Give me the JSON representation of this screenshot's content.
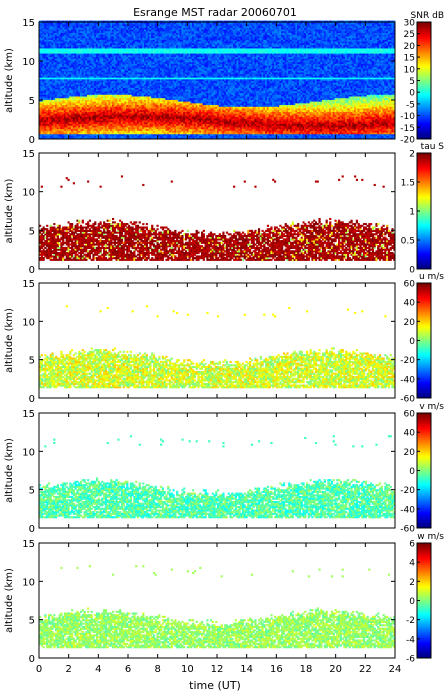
{
  "chart_data": {
    "type": "heatmap",
    "title": "Esrange MST radar 20060701",
    "xlabel": "time (UT)",
    "xlim": [
      0,
      24
    ],
    "xticks": [
      0,
      2,
      4,
      6,
      8,
      10,
      12,
      14,
      16,
      18,
      20,
      22,
      24
    ],
    "panels": [
      {
        "id": "snr",
        "ylabel": "altitude (km)",
        "ylim": [
          0,
          15
        ],
        "yticks": [
          0,
          5,
          10,
          15
        ],
        "colorbar_label": "SNR dB",
        "colorbar_range": [
          -20,
          30
        ],
        "colorbar_ticks": [
          -20,
          -15,
          -10,
          -5,
          0,
          5,
          10,
          15,
          20,
          25,
          30
        ],
        "features": [
          {
            "name": "noise floor band",
            "altitude_km": [
              0.5,
              15
            ],
            "level": -10
          },
          {
            "name": "interference line",
            "altitude_km": 11.2,
            "level": -2
          },
          {
            "name": "interference line",
            "altitude_km": 7.7,
            "level": -3
          },
          {
            "name": "strong echo layer",
            "altitude_km": [
              0.5,
              5.5
            ],
            "level": 15
          },
          {
            "name": "tropopause echo",
            "altitude_km": 2.5,
            "level": 28
          }
        ]
      },
      {
        "id": "tau",
        "ylabel": "altitude (km)",
        "ylim": [
          0,
          15
        ],
        "yticks": [
          0,
          5,
          10,
          15
        ],
        "colorbar_label": "tau S",
        "colorbar_range": [
          0,
          2
        ],
        "colorbar_ticks": [
          0,
          0.5,
          1,
          1.5,
          2
        ],
        "features": [
          {
            "name": "echo region",
            "altitude_km": [
              1,
              6.5
            ],
            "level": 1.9
          }
        ]
      },
      {
        "id": "u",
        "ylabel": "altitude (km)",
        "ylim": [
          0,
          15
        ],
        "yticks": [
          0,
          5,
          10,
          15
        ],
        "colorbar_label": "u m/s",
        "colorbar_range": [
          -60,
          60
        ],
        "colorbar_ticks": [
          -60,
          -40,
          -20,
          0,
          20,
          40,
          60
        ],
        "features": [
          {
            "name": "echo region",
            "altitude_km": [
              1,
              6
            ],
            "level": 8
          }
        ]
      },
      {
        "id": "v",
        "ylabel": "altitude (km)",
        "ylim": [
          0,
          15
        ],
        "yticks": [
          0,
          5,
          10,
          15
        ],
        "colorbar_label": "v m/s",
        "colorbar_range": [
          -60,
          60
        ],
        "colorbar_ticks": [
          -60,
          -40,
          -20,
          0,
          20,
          40,
          60
        ],
        "features": [
          {
            "name": "echo region",
            "altitude_km": [
              1,
              6
            ],
            "level": -5
          }
        ]
      },
      {
        "id": "w",
        "ylabel": "altitude (km)",
        "ylim": [
          0,
          15
        ],
        "yticks": [
          0,
          5,
          10,
          15
        ],
        "colorbar_label": "w m/s",
        "colorbar_range": [
          -6,
          6
        ],
        "colorbar_ticks": [
          -6,
          -4,
          -2,
          0,
          2,
          4,
          6
        ],
        "features": [
          {
            "name": "echo region",
            "altitude_km": [
              0.5,
              5.5
            ],
            "level": 0.3
          }
        ]
      }
    ]
  }
}
